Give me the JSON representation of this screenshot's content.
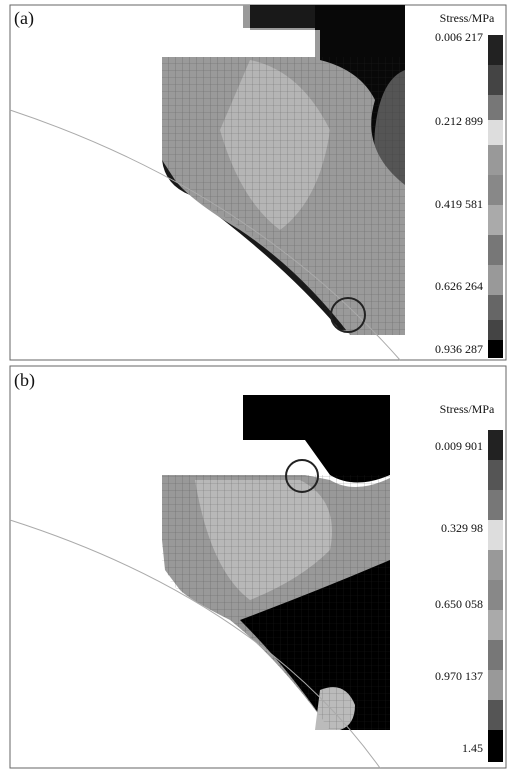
{
  "panels": [
    {
      "label": "(a)",
      "colorbar_title": "Stress/MPa",
      "colorbar_labels": [
        "0.006 217",
        "0.212 899",
        "0.419 581",
        "0.626 264",
        "0.936 287"
      ]
    },
    {
      "label": "(b)",
      "colorbar_title": "Stress/MPa",
      "colorbar_labels": [
        "0.009 901",
        "0.329 98",
        "0.650 058",
        "0.970 137",
        "1.45"
      ]
    }
  ]
}
